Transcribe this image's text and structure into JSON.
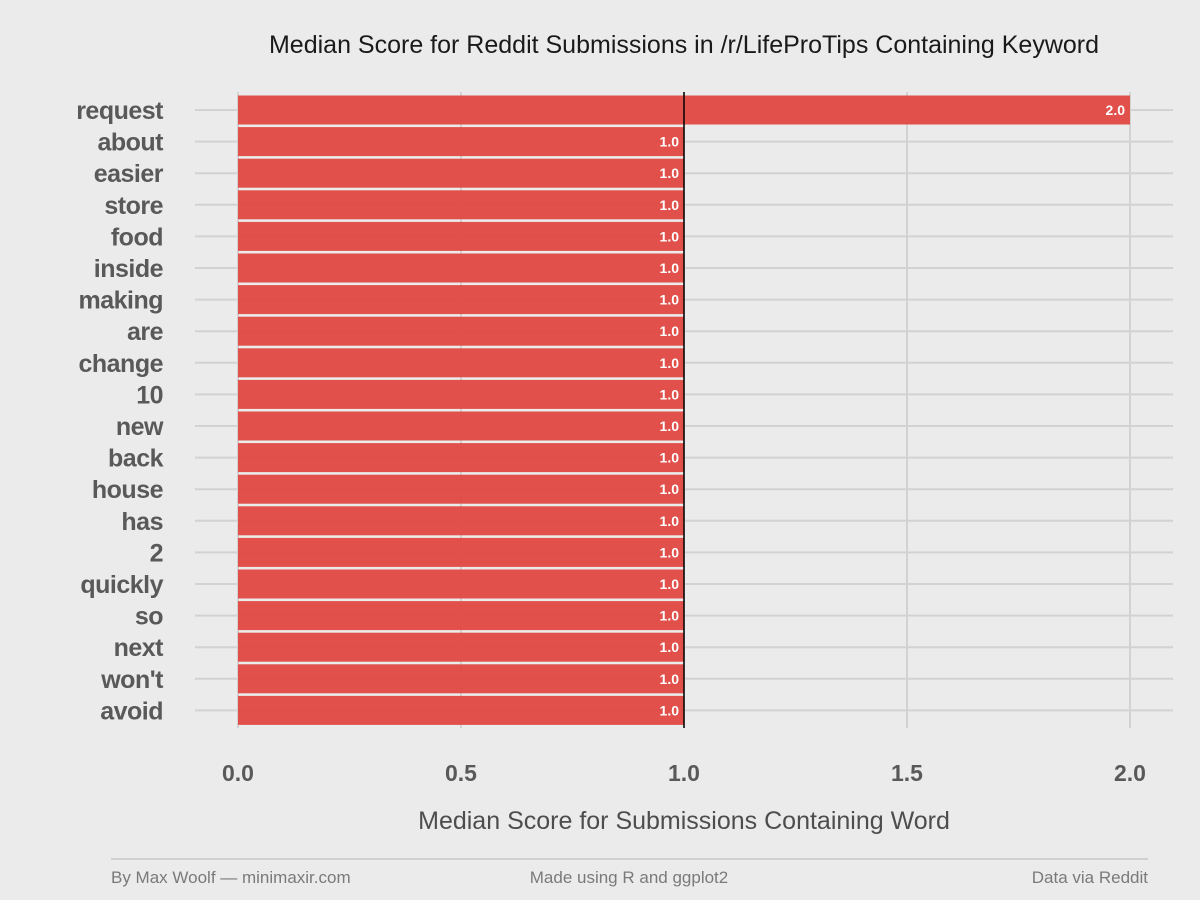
{
  "chart_data": {
    "type": "bar",
    "orientation": "horizontal",
    "title": "Median Score for Reddit Submissions in /r/LifeProTips Containing Keyword",
    "xlabel": "Median Score for Submissions Containing Word",
    "ylabel": "",
    "xlim": [
      0,
      2.1
    ],
    "xticks": [
      "0.0",
      "0.5",
      "1.0",
      "1.5",
      "2.0"
    ],
    "xtick_values": [
      0,
      0.5,
      1.0,
      1.5,
      2.0
    ],
    "reference_line": 1.0,
    "bar_color": "#e04a44",
    "categories": [
      "request",
      "about",
      "easier",
      "store",
      "food",
      "inside",
      "making",
      "are",
      "change",
      "10",
      "new",
      "back",
      "house",
      "has",
      "2",
      "quickly",
      "so",
      "next",
      "won't",
      "avoid"
    ],
    "values": [
      2.0,
      1.0,
      1.0,
      1.0,
      1.0,
      1.0,
      1.0,
      1.0,
      1.0,
      1.0,
      1.0,
      1.0,
      1.0,
      1.0,
      1.0,
      1.0,
      1.0,
      1.0,
      1.0,
      1.0
    ],
    "value_labels": [
      "2.0",
      "1.0",
      "1.0",
      "1.0",
      "1.0",
      "1.0",
      "1.0",
      "1.0",
      "1.0",
      "1.0",
      "1.0",
      "1.0",
      "1.0",
      "1.0",
      "1.0",
      "1.0",
      "1.0",
      "1.0",
      "1.0",
      "1.0"
    ],
    "grid": true,
    "legend": "none"
  },
  "footer": {
    "left": "By Max Woolf — minimaxir.com",
    "center": "Made using R and ggplot2",
    "right": "Data via Reddit"
  },
  "colors": {
    "background": "#ebebeb",
    "grid": "#d2d2d2",
    "bar": "#e04a44",
    "reference_line": "#000000"
  }
}
